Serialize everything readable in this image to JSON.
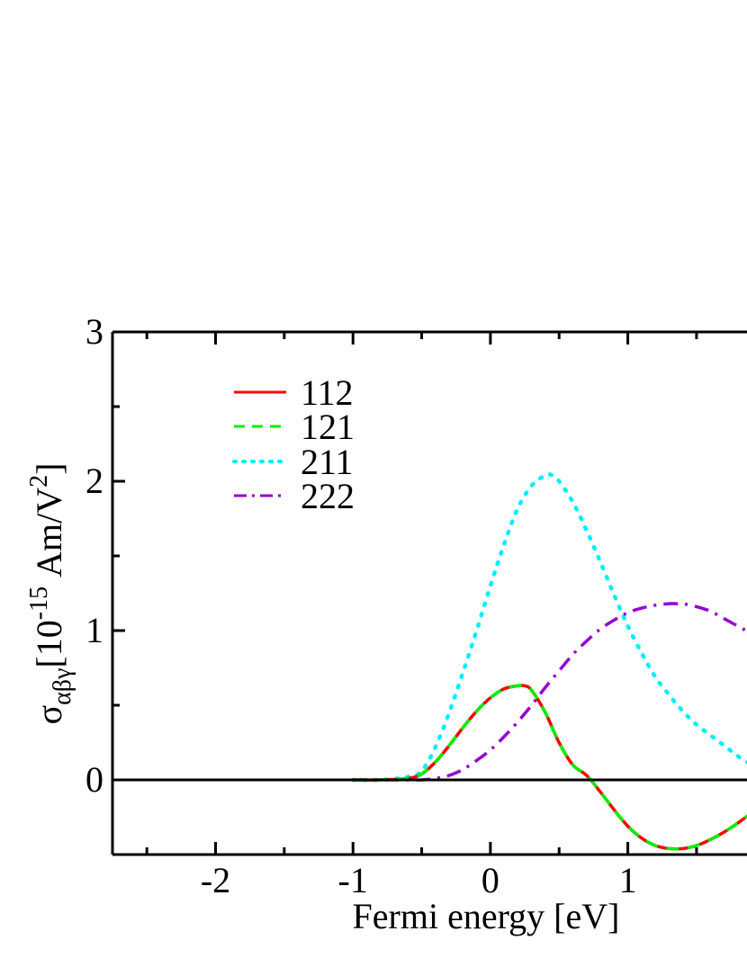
{
  "chart_data": {
    "type": "line",
    "xlabel": "Fermi energy [eV]",
    "ylabel": {
      "symbol": "σ",
      "subscript": "αβγ",
      "bracket_open": "[10",
      "exponent": "-15",
      "unit": " Am/V",
      "unit_exponent": "2",
      "bracket_close": "]"
    },
    "xlim": [
      -2.75,
      1.9
    ],
    "ylim": [
      -0.5,
      3.0
    ],
    "x_ticks": [
      -2,
      -1,
      0,
      1
    ],
    "x_tick_labels": [
      "-2",
      "-1",
      "0",
      "1"
    ],
    "y_ticks": [
      0,
      1,
      2,
      3
    ],
    "y_tick_labels": [
      "0",
      "1",
      "2",
      "3"
    ],
    "grid": false,
    "legend_position": "top-left",
    "zero_line": true,
    "series": [
      {
        "name": "112",
        "color": "#ff0000",
        "style": "solid",
        "x": [
          -1.0,
          -0.8,
          -0.6,
          -0.5,
          -0.4,
          -0.3,
          -0.2,
          -0.1,
          0.0,
          0.1,
          0.2,
          0.25,
          0.3,
          0.4,
          0.5,
          0.6,
          0.7,
          0.8,
          0.9,
          1.0,
          1.1,
          1.2,
          1.3,
          1.4,
          1.5,
          1.6,
          1.7,
          1.8,
          1.9
        ],
        "y": [
          0.0,
          0.0,
          0.01,
          0.04,
          0.12,
          0.23,
          0.35,
          0.46,
          0.55,
          0.61,
          0.63,
          0.63,
          0.6,
          0.45,
          0.25,
          0.1,
          0.03,
          -0.08,
          -0.2,
          -0.31,
          -0.39,
          -0.44,
          -0.46,
          -0.46,
          -0.44,
          -0.4,
          -0.35,
          -0.29,
          -0.22
        ]
      },
      {
        "name": "121",
        "color": "#00ee00",
        "style": "dashed",
        "x": [
          -1.0,
          -0.8,
          -0.6,
          -0.5,
          -0.4,
          -0.3,
          -0.2,
          -0.1,
          0.0,
          0.1,
          0.2,
          0.25,
          0.3,
          0.4,
          0.5,
          0.6,
          0.7,
          0.8,
          0.9,
          1.0,
          1.1,
          1.2,
          1.3,
          1.4,
          1.5,
          1.6,
          1.7,
          1.8,
          1.9
        ],
        "y": [
          0.0,
          0.0,
          0.01,
          0.04,
          0.12,
          0.23,
          0.35,
          0.46,
          0.55,
          0.61,
          0.63,
          0.63,
          0.6,
          0.45,
          0.25,
          0.1,
          0.03,
          -0.08,
          -0.2,
          -0.31,
          -0.39,
          -0.44,
          -0.46,
          -0.46,
          -0.44,
          -0.4,
          -0.35,
          -0.29,
          -0.22
        ]
      },
      {
        "name": "211",
        "color": "#00eeff",
        "style": "dotted",
        "x": [
          -1.0,
          -0.8,
          -0.6,
          -0.5,
          -0.4,
          -0.3,
          -0.2,
          -0.1,
          0.0,
          0.1,
          0.2,
          0.3,
          0.4,
          0.45,
          0.5,
          0.6,
          0.7,
          0.8,
          0.9,
          1.0,
          1.1,
          1.2,
          1.3,
          1.4,
          1.5,
          1.6,
          1.7,
          1.8,
          1.9
        ],
        "y": [
          0.0,
          0.0,
          0.02,
          0.06,
          0.22,
          0.45,
          0.72,
          1.0,
          1.3,
          1.58,
          1.82,
          1.97,
          2.04,
          2.04,
          2.0,
          1.86,
          1.67,
          1.46,
          1.24,
          1.03,
          0.85,
          0.69,
          0.57,
          0.46,
          0.37,
          0.3,
          0.23,
          0.16,
          0.1
        ]
      },
      {
        "name": "222",
        "color": "#9400d3",
        "style": "dashdot",
        "x": [
          -1.0,
          -0.8,
          -0.6,
          -0.5,
          -0.4,
          -0.3,
          -0.2,
          -0.1,
          0.0,
          0.1,
          0.2,
          0.3,
          0.4,
          0.5,
          0.6,
          0.7,
          0.8,
          0.9,
          1.0,
          1.1,
          1.2,
          1.3,
          1.35,
          1.4,
          1.5,
          1.6,
          1.7,
          1.8,
          1.9
        ],
        "y": [
          0.0,
          0.0,
          0.0,
          0.0,
          0.01,
          0.03,
          0.07,
          0.13,
          0.2,
          0.29,
          0.39,
          0.5,
          0.62,
          0.73,
          0.84,
          0.93,
          1.01,
          1.07,
          1.12,
          1.15,
          1.17,
          1.18,
          1.18,
          1.18,
          1.16,
          1.13,
          1.08,
          1.03,
          0.98
        ]
      }
    ]
  }
}
